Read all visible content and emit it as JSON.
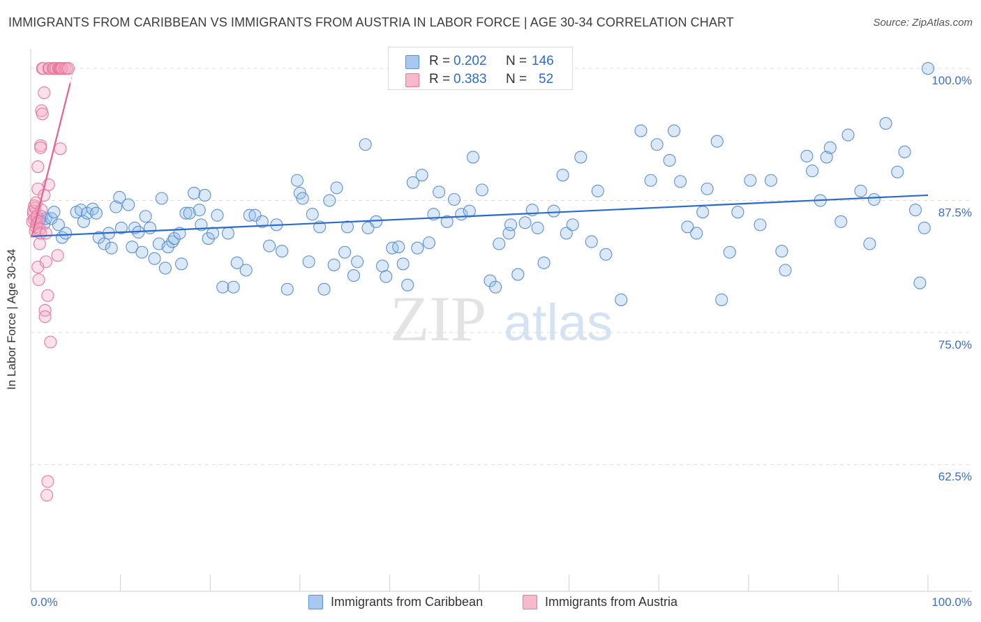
{
  "header": {
    "title": "IMMIGRANTS FROM CARIBBEAN VS IMMIGRANTS FROM AUSTRIA IN LABOR FORCE | AGE 30-34 CORRELATION CHART",
    "source": "Source: ZipAtlas.com"
  },
  "watermark": {
    "zip": "ZIP",
    "atlas": "atlas"
  },
  "legend": {
    "rows": [
      {
        "r_label": "R =",
        "r_value": "0.202",
        "n_label": "N =",
        "n_value": "146",
        "color": "#a9c8f0",
        "border": "#5b8fd6"
      },
      {
        "r_label": "R =",
        "r_value": "0.383",
        "n_label": "N =",
        "n_value": "52",
        "color": "#f7b9cc",
        "border": "#e8799c"
      }
    ]
  },
  "bottom_legend": {
    "caribbean": "Immigrants from Caribbean",
    "austria": "Immigrants from Austria"
  },
  "colors": {
    "caribbean_fill": "rgba(150,190,235,0.35)",
    "caribbean_stroke": "#5b8fd6",
    "caribbean_line": "#2a6ac8",
    "austria_fill": "rgba(245,170,195,0.35)",
    "austria_stroke": "#e8799c",
    "austria_line": "#e8608c",
    "axis_text": "#3a6fc4",
    "grid": "#dcdcdc"
  },
  "chart_data": {
    "type": "scatter",
    "title": "IMMIGRANTS FROM CARIBBEAN VS IMMIGRANTS FROM AUSTRIA IN LABOR FORCE | AGE 30-34 CORRELATION CHART",
    "xlabel": "",
    "ylabel": "In Labor Force | Age 30-34",
    "x_tick_labels": [
      "0.0%",
      "100.0%"
    ],
    "y_tick_labels": [
      "100.0%",
      "87.5%",
      "75.0%",
      "62.5%"
    ],
    "y_ticks": [
      100.0,
      87.5,
      75.0,
      62.5
    ],
    "xlim": [
      0,
      100
    ],
    "ylim": [
      50.5,
      101.2
    ],
    "grid": "horizontal dashed",
    "legend_position": "top-center",
    "series": [
      {
        "name": "Immigrants from Caribbean",
        "r": 0.202,
        "n": 146,
        "trend": {
          "x0": 0,
          "y0": 84.1,
          "x1": 100,
          "y1": 88.0
        },
        "points": [
          [
            0.7,
            85.6
          ],
          [
            1.0,
            85.7
          ],
          [
            1.2,
            86.0
          ],
          [
            1.5,
            85.3
          ],
          [
            1.7,
            85.8
          ],
          [
            2.3,
            85.8
          ],
          [
            2.6,
            86.4
          ],
          [
            3.1,
            85.2
          ],
          [
            3.5,
            84.0
          ],
          [
            3.9,
            84.4
          ],
          [
            5.1,
            86.4
          ],
          [
            5.6,
            86.6
          ],
          [
            5.9,
            85.5
          ],
          [
            6.3,
            86.3
          ],
          [
            6.9,
            86.7
          ],
          [
            7.3,
            86.3
          ],
          [
            7.6,
            84.0
          ],
          [
            8.2,
            83.4
          ],
          [
            8.7,
            84.4
          ],
          [
            9.0,
            83.0
          ],
          [
            9.5,
            86.9
          ],
          [
            9.9,
            87.8
          ],
          [
            10.1,
            84.9
          ],
          [
            10.9,
            87.1
          ],
          [
            11.3,
            83.1
          ],
          [
            11.6,
            84.9
          ],
          [
            12.0,
            84.5
          ],
          [
            12.4,
            82.6
          ],
          [
            12.8,
            86.0
          ],
          [
            13.3,
            84.9
          ],
          [
            13.8,
            82.0
          ],
          [
            14.3,
            83.4
          ],
          [
            14.6,
            87.7
          ],
          [
            15.0,
            81.1
          ],
          [
            15.3,
            83.1
          ],
          [
            15.8,
            83.6
          ],
          [
            16.0,
            83.9
          ],
          [
            16.6,
            84.4
          ],
          [
            16.8,
            81.5
          ],
          [
            17.3,
            86.3
          ],
          [
            17.7,
            86.3
          ],
          [
            18.2,
            88.2
          ],
          [
            18.8,
            86.6
          ],
          [
            19.0,
            85.2
          ],
          [
            19.4,
            88.0
          ],
          [
            19.8,
            83.9
          ],
          [
            20.3,
            84.4
          ],
          [
            20.8,
            86.1
          ],
          [
            21.4,
            79.3
          ],
          [
            22.0,
            84.4
          ],
          [
            22.6,
            79.3
          ],
          [
            23.0,
            81.6
          ],
          [
            24.0,
            80.9
          ],
          [
            24.4,
            86.1
          ],
          [
            25.0,
            86.1
          ],
          [
            25.8,
            85.5
          ],
          [
            26.6,
            83.2
          ],
          [
            27.4,
            85.2
          ],
          [
            28.0,
            82.7
          ],
          [
            28.6,
            79.1
          ],
          [
            29.7,
            89.4
          ],
          [
            30.0,
            88.2
          ],
          [
            30.3,
            87.7
          ],
          [
            31.0,
            81.7
          ],
          [
            31.4,
            86.2
          ],
          [
            32.2,
            85.0
          ],
          [
            32.7,
            79.1
          ],
          [
            33.3,
            87.5
          ],
          [
            33.8,
            81.4
          ],
          [
            34.1,
            88.7
          ],
          [
            35.0,
            82.6
          ],
          [
            35.3,
            85.0
          ],
          [
            36.0,
            80.4
          ],
          [
            36.4,
            81.7
          ],
          [
            37.3,
            92.8
          ],
          [
            37.6,
            84.9
          ],
          [
            38.5,
            85.5
          ],
          [
            39.2,
            81.3
          ],
          [
            39.6,
            80.3
          ],
          [
            40.3,
            83.0
          ],
          [
            41.0,
            83.1
          ],
          [
            41.5,
            81.5
          ],
          [
            42.0,
            79.5
          ],
          [
            42.6,
            89.2
          ],
          [
            43.1,
            83.0
          ],
          [
            43.6,
            89.9
          ],
          [
            44.4,
            83.5
          ],
          [
            44.9,
            86.2
          ],
          [
            45.5,
            88.3
          ],
          [
            46.4,
            85.5
          ],
          [
            47.2,
            87.6
          ],
          [
            48.0,
            86.2
          ],
          [
            48.9,
            86.5
          ],
          [
            49.3,
            91.6
          ],
          [
            50.3,
            88.5
          ],
          [
            51.2,
            79.9
          ],
          [
            51.8,
            79.3
          ],
          [
            52.2,
            83.4
          ],
          [
            53.3,
            84.4
          ],
          [
            53.5,
            85.2
          ],
          [
            54.3,
            80.5
          ],
          [
            55.1,
            85.4
          ],
          [
            55.9,
            86.6
          ],
          [
            56.5,
            84.9
          ],
          [
            57.2,
            81.6
          ],
          [
            58.3,
            86.5
          ],
          [
            59.3,
            89.9
          ],
          [
            59.7,
            84.4
          ],
          [
            60.4,
            85.2
          ],
          [
            61.3,
            91.6
          ],
          [
            62.5,
            83.6
          ],
          [
            63.2,
            88.4
          ],
          [
            64.1,
            82.4
          ],
          [
            65.8,
            78.1
          ],
          [
            68.0,
            94.1
          ],
          [
            69.1,
            89.4
          ],
          [
            69.8,
            92.8
          ],
          [
            71.2,
            91.3
          ],
          [
            71.7,
            94.1
          ],
          [
            72.4,
            89.3
          ],
          [
            73.2,
            85.0
          ],
          [
            74.2,
            84.4
          ],
          [
            74.9,
            86.4
          ],
          [
            75.4,
            88.6
          ],
          [
            76.5,
            93.1
          ],
          [
            77.0,
            78.1
          ],
          [
            77.9,
            82.6
          ],
          [
            78.8,
            86.4
          ],
          [
            80.2,
            89.4
          ],
          [
            81.3,
            85.2
          ],
          [
            82.5,
            89.4
          ],
          [
            83.7,
            82.7
          ],
          [
            84.1,
            80.9
          ],
          [
            86.5,
            91.7
          ],
          [
            87.1,
            90.3
          ],
          [
            88.0,
            87.5
          ],
          [
            88.7,
            91.6
          ],
          [
            89.1,
            92.5
          ],
          [
            90.3,
            85.5
          ],
          [
            91.1,
            93.7
          ],
          [
            92.5,
            88.4
          ],
          [
            93.5,
            83.4
          ],
          [
            94.0,
            87.6
          ],
          [
            95.3,
            94.8
          ],
          [
            96.6,
            90.2
          ],
          [
            97.4,
            92.1
          ],
          [
            98.6,
            86.6
          ],
          [
            99.1,
            79.7
          ],
          [
            99.6,
            84.9
          ],
          [
            100.0,
            100.0
          ]
        ]
      },
      {
        "name": "Immigrants from Austria",
        "r": 0.383,
        "n": 52,
        "trend": {
          "x0": 0.1,
          "y0": 84.0,
          "x1": 4.4,
          "y1": 98.6
        },
        "points": [
          [
            0.2,
            85.5
          ],
          [
            0.3,
            86.2
          ],
          [
            0.3,
            86.5
          ],
          [
            0.4,
            87.0
          ],
          [
            0.4,
            85.7
          ],
          [
            0.5,
            86.8
          ],
          [
            0.5,
            84.6
          ],
          [
            0.6,
            85.0
          ],
          [
            0.6,
            87.3
          ],
          [
            0.7,
            86.0
          ],
          [
            0.7,
            85.3
          ],
          [
            0.8,
            88.6
          ],
          [
            0.8,
            81.2
          ],
          [
            0.8,
            90.7
          ],
          [
            0.9,
            80.0
          ],
          [
            0.9,
            85.5
          ],
          [
            1.0,
            84.8
          ],
          [
            1.0,
            83.4
          ],
          [
            1.1,
            92.7
          ],
          [
            1.1,
            92.5
          ],
          [
            1.1,
            84.4
          ],
          [
            1.2,
            86.6
          ],
          [
            1.2,
            96.0
          ],
          [
            1.3,
            95.7
          ],
          [
            1.3,
            100.0
          ],
          [
            1.4,
            100.0
          ],
          [
            1.5,
            88.0
          ],
          [
            1.5,
            97.7
          ],
          [
            1.6,
            77.1
          ],
          [
            1.6,
            76.5
          ],
          [
            1.7,
            84.4
          ],
          [
            1.7,
            81.7
          ],
          [
            1.8,
            59.6
          ],
          [
            1.9,
            60.9
          ],
          [
            1.9,
            78.5
          ],
          [
            2.0,
            89.0
          ],
          [
            2.0,
            100.0
          ],
          [
            2.1,
            100.0
          ],
          [
            2.2,
            74.1
          ],
          [
            2.5,
            100.0
          ],
          [
            2.6,
            100.0
          ],
          [
            2.8,
            100.0
          ],
          [
            3.0,
            82.3
          ],
          [
            3.1,
            100.0
          ],
          [
            3.2,
            100.0
          ],
          [
            3.3,
            100.0
          ],
          [
            3.3,
            92.4
          ],
          [
            3.4,
            100.0
          ],
          [
            3.5,
            100.0
          ],
          [
            3.8,
            100.0
          ],
          [
            4.0,
            100.0
          ],
          [
            4.2,
            100.0
          ]
        ]
      }
    ]
  }
}
